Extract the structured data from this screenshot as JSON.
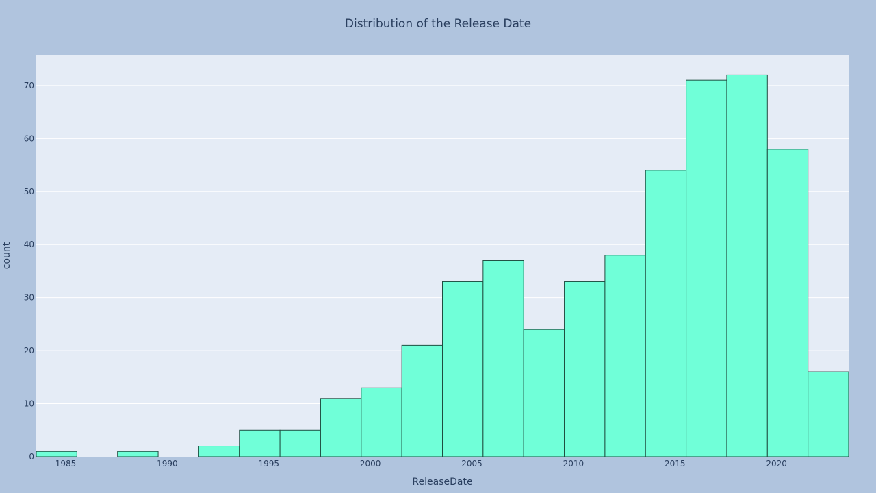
{
  "chart_data": {
    "type": "bar",
    "title": "Distribution of the Release Date",
    "xlabel": "ReleaseDate",
    "ylabel": "count",
    "bin_edges": [
      1983.55,
      1985.55,
      1987.55,
      1989.55,
      1991.55,
      1993.55,
      1995.55,
      1997.55,
      1999.55,
      2001.55,
      2003.55,
      2005.55,
      2007.55,
      2009.55,
      2011.55,
      2013.55,
      2015.55,
      2017.55,
      2019.55,
      2021.55,
      2023.55
    ],
    "values": [
      1,
      0,
      1,
      0,
      2,
      5,
      5,
      11,
      13,
      21,
      33,
      37,
      24,
      33,
      38,
      54,
      71,
      72,
      58,
      16
    ],
    "xlim": [
      1983.55,
      2023.55
    ],
    "ylim": [
      0,
      75.8
    ],
    "x_ticks": [
      1985,
      1990,
      1995,
      2000,
      2005,
      2010,
      2015,
      2020
    ],
    "y_ticks": [
      0,
      10,
      20,
      30,
      40,
      50,
      60,
      70
    ],
    "grid": true,
    "colors": {
      "page_background": "#b0c4de",
      "plot_background": "#e5ecf6",
      "grid": "#ffffff",
      "bar_fill": "#70ffd8",
      "bar_stroke": "#1f4d40",
      "text": "#2a3f5f"
    }
  }
}
